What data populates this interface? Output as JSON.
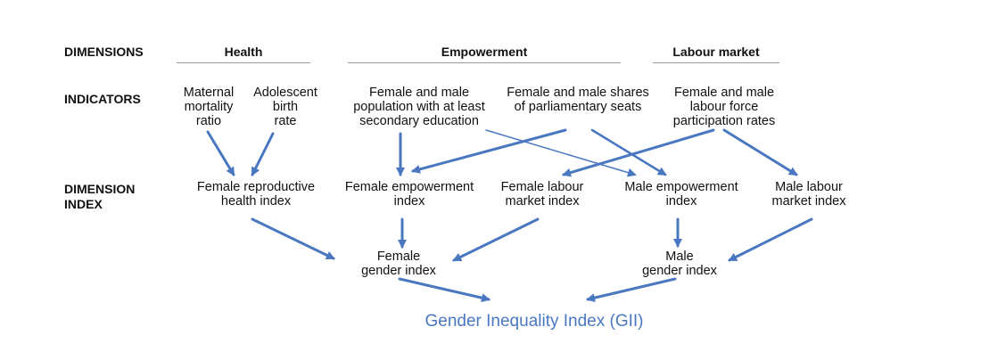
{
  "row_labels": {
    "dimensions": "DIMENSIONS",
    "indicators": "INDICATORS",
    "dimension_index": "DIMENSION\nINDEX"
  },
  "dimensions": {
    "health": "Health",
    "empowerment": "Empowerment",
    "labour_market": "Labour market"
  },
  "indicators": {
    "maternal_mortality": "Maternal\nmortality\nratio",
    "adolescent_birth": "Adolescent\nbirth\nrate",
    "secondary_education": "Female and male\npopulation with at least\nsecondary education",
    "parliamentary_seats": "Female and male shares\nof parliamentary seats",
    "labour_force": "Female and male\nlabour force\nparticipation rates"
  },
  "dimension_indices": {
    "female_reproductive": "Female reproductive\nhealth index",
    "female_empowerment": "Female empowerment\nindex",
    "female_labour": "Female labour\nmarket index",
    "male_empowerment": "Male empowerment\nindex",
    "male_labour": "Male labour\nmarket index"
  },
  "gender_indices": {
    "female": "Female\ngender index",
    "male": "Male\ngender index"
  },
  "final_index": "Gender Inequality Index (GII)",
  "colors": {
    "arrow": "#4a78c0",
    "final_text": "#4a78c0",
    "rule": "#9a9a9a"
  }
}
